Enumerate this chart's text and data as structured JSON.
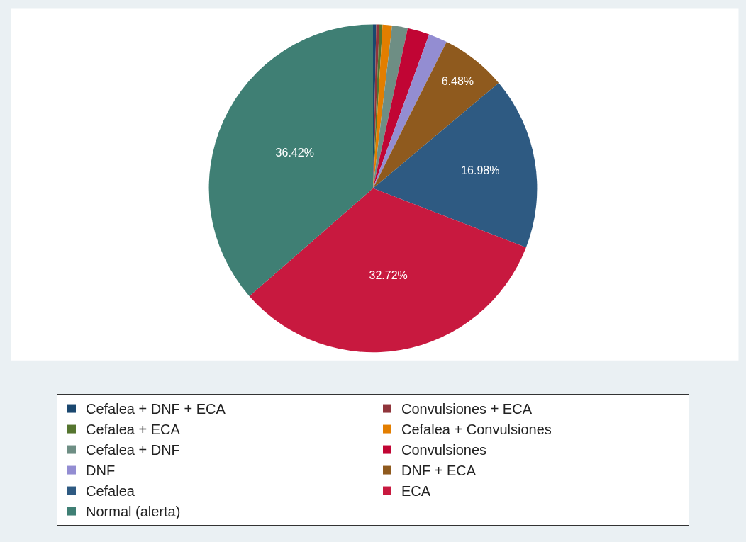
{
  "chart_data": {
    "type": "pie",
    "categories": [
      "Cefalea + DNF + ECA",
      "Convulsiones + ECA",
      "Cefalea + ECA",
      "Cefalea + Convulsiones",
      "Cefalea + DNF",
      "Convulsiones",
      "DNF",
      "DNF + ECA",
      "Cefalea",
      "ECA",
      "Normal (alerta)"
    ],
    "values": [
      0.31,
      0.31,
      0.31,
      0.93,
      1.54,
      2.16,
      1.85,
      6.48,
      16.98,
      32.72,
      36.42
    ],
    "colors": [
      "#1a476f",
      "#90353b",
      "#55752f",
      "#e37e00",
      "#6e8e84",
      "#c10534",
      "#938dd2",
      "#8f5a1e",
      "#2e5a82",
      "#c8193f",
      "#3f7f74"
    ],
    "value_labels": [
      null,
      null,
      null,
      null,
      null,
      null,
      null,
      "6.48%",
      "16.98%",
      "32.72%",
      "36.42%"
    ],
    "legend": "bottom"
  }
}
